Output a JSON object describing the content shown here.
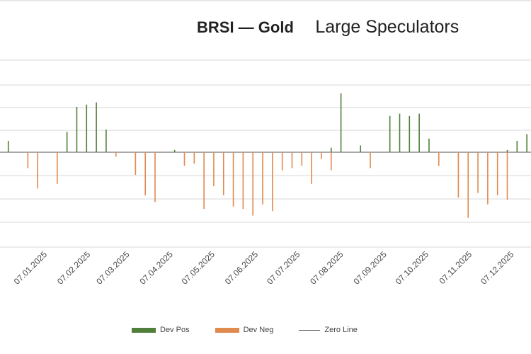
{
  "chart_data": {
    "type": "bar",
    "title": "BRSI — Gold",
    "subtitle": "Large Speculators",
    "x_ticks": [
      "07.01.2025",
      "07.02.2025",
      "07.03.2025",
      "07.04.2025",
      "07.05.2025",
      "07.06.2025",
      "07.07.2025",
      "07.08.2025",
      "07.09.2025",
      "07.10.2025",
      "07.11.2025",
      "07.12.2025"
    ],
    "grid": true,
    "legend_position": "bottom",
    "series": [
      {
        "name": "Dev Pos",
        "color": "#4f7f3a",
        "values": [
          {
            "x": "2024-12-10",
            "y": 0.5
          },
          {
            "x": "2025-01-21",
            "y": 0.9
          },
          {
            "x": "2025-01-28",
            "y": 2.0
          },
          {
            "x": "2025-02-04",
            "y": 2.1
          },
          {
            "x": "2025-02-11",
            "y": 2.2
          },
          {
            "x": "2025-02-18",
            "y": 1.0
          },
          {
            "x": "2025-04-08",
            "y": 0.1
          },
          {
            "x": "2025-07-29",
            "y": 0.2
          },
          {
            "x": "2025-08-05",
            "y": 2.6
          },
          {
            "x": "2025-08-19",
            "y": 0.3
          },
          {
            "x": "2025-09-09",
            "y": 1.6
          },
          {
            "x": "2025-09-16",
            "y": 1.7
          },
          {
            "x": "2025-09-23",
            "y": 1.6
          },
          {
            "x": "2025-09-30",
            "y": 1.7
          },
          {
            "x": "2025-10-07",
            "y": 0.6
          },
          {
            "x": "2025-12-02",
            "y": 0.1
          },
          {
            "x": "2025-12-09",
            "y": 0.5
          },
          {
            "x": "2025-12-16",
            "y": 0.8
          }
        ]
      },
      {
        "name": "Dev Neg",
        "color": "#e08a4e",
        "values": [
          {
            "x": "2024-12-24",
            "y": -0.7
          },
          {
            "x": "2024-12-31",
            "y": -1.6
          },
          {
            "x": "2025-01-14",
            "y": -1.4
          },
          {
            "x": "2025-02-25",
            "y": -0.2
          },
          {
            "x": "2025-03-11",
            "y": -1.0
          },
          {
            "x": "2025-03-18",
            "y": -1.9
          },
          {
            "x": "2025-03-25",
            "y": -2.2
          },
          {
            "x": "2025-04-15",
            "y": -0.6
          },
          {
            "x": "2025-04-22",
            "y": -0.5
          },
          {
            "x": "2025-04-29",
            "y": -2.5
          },
          {
            "x": "2025-05-06",
            "y": -1.5
          },
          {
            "x": "2025-05-13",
            "y": -1.9
          },
          {
            "x": "2025-05-20",
            "y": -2.4
          },
          {
            "x": "2025-05-27",
            "y": -2.5
          },
          {
            "x": "2025-06-03",
            "y": -2.8
          },
          {
            "x": "2025-06-10",
            "y": -2.3
          },
          {
            "x": "2025-06-17",
            "y": -2.6
          },
          {
            "x": "2025-06-24",
            "y": -0.8
          },
          {
            "x": "2025-07-01",
            "y": -0.7
          },
          {
            "x": "2025-07-08",
            "y": -0.6
          },
          {
            "x": "2025-07-15",
            "y": -1.4
          },
          {
            "x": "2025-07-22",
            "y": -0.3
          },
          {
            "x": "2025-07-29",
            "y": -0.8
          },
          {
            "x": "2025-08-26",
            "y": -0.7
          },
          {
            "x": "2025-10-14",
            "y": -0.6
          },
          {
            "x": "2025-10-28",
            "y": -2.0
          },
          {
            "x": "2025-11-04",
            "y": -2.9
          },
          {
            "x": "2025-11-11",
            "y": -1.8
          },
          {
            "x": "2025-11-18",
            "y": -2.3
          },
          {
            "x": "2025-11-25",
            "y": -1.9
          },
          {
            "x": "2025-12-02",
            "y": -2.1
          }
        ]
      },
      {
        "name": "Zero Line",
        "color": "#555555",
        "type": "line"
      }
    ]
  }
}
